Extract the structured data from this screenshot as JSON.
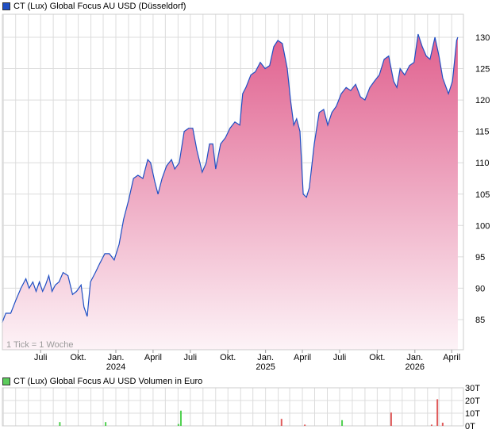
{
  "chart_data": [
    {
      "type": "area",
      "title": "CT (Lux) Global Focus AU USD (Düsseldorf)",
      "note": "1 Tick = 1 Woche",
      "colors": {
        "line": "#1f4fc4",
        "fill_top": "#e0608e",
        "fill_bottom": "#fdf3f7",
        "legend": "#1f4fc4"
      },
      "grid": true,
      "ylim": [
        80,
        132
      ],
      "y_ticks": [
        85,
        90,
        95,
        100,
        105,
        110,
        115,
        120,
        125,
        130
      ],
      "x_ticks": [
        {
          "date": "2023-07-01",
          "label": "Juli",
          "year": ""
        },
        {
          "date": "2023-10-01",
          "label": "Okt.",
          "year": ""
        },
        {
          "date": "2024-01-01",
          "label": "Jan.",
          "year": "2024"
        },
        {
          "date": "2024-04-01",
          "label": "April",
          "year": ""
        },
        {
          "date": "2024-07-01",
          "label": "Juli",
          "year": ""
        },
        {
          "date": "2024-10-01",
          "label": "Okt.",
          "year": ""
        },
        {
          "date": "2025-01-01",
          "label": "Jan.",
          "year": "2025"
        },
        {
          "date": "2025-04-01",
          "label": "April",
          "year": ""
        },
        {
          "date": "2025-07-01",
          "label": "Juli",
          "year": ""
        },
        {
          "date": "2025-10-01",
          "label": "Okt.",
          "year": ""
        },
        {
          "date": "2026-01-01",
          "label": "Jan.",
          "year": "2026"
        },
        {
          "date": "2026-04-01",
          "label": "April",
          "year": ""
        }
      ],
      "points": [
        [
          "2023-03-29",
          84.5
        ],
        [
          "2023-04-07",
          86
        ],
        [
          "2023-04-19",
          86
        ],
        [
          "2023-05-01",
          88
        ],
        [
          "2023-05-14",
          90
        ],
        [
          "2023-05-26",
          91.5
        ],
        [
          "2023-06-03",
          90
        ],
        [
          "2023-06-12",
          91
        ],
        [
          "2023-06-20",
          89.5
        ],
        [
          "2023-06-28",
          91
        ],
        [
          "2023-07-06",
          89.5
        ],
        [
          "2023-07-13",
          90.5
        ],
        [
          "2023-07-21",
          92
        ],
        [
          "2023-07-29",
          89.5
        ],
        [
          "2023-08-06",
          90.5
        ],
        [
          "2023-08-15",
          91
        ],
        [
          "2023-08-25",
          92.5
        ],
        [
          "2023-09-06",
          92
        ],
        [
          "2023-09-17",
          89
        ],
        [
          "2023-09-27",
          89.5
        ],
        [
          "2023-10-08",
          90.5
        ],
        [
          "2023-10-15",
          87
        ],
        [
          "2023-10-23",
          85.5
        ],
        [
          "2023-10-31",
          91
        ],
        [
          "2023-11-12",
          92.5
        ],
        [
          "2023-11-23",
          94
        ],
        [
          "2023-12-05",
          95.5
        ],
        [
          "2023-12-16",
          95.5
        ],
        [
          "2023-12-28",
          94.5
        ],
        [
          "2024-01-09",
          97
        ],
        [
          "2024-01-20",
          101
        ],
        [
          "2024-02-01",
          104
        ],
        [
          "2024-02-13",
          107.5
        ],
        [
          "2024-02-24",
          108
        ],
        [
          "2024-03-07",
          107.5
        ],
        [
          "2024-03-19",
          110.5
        ],
        [
          "2024-03-26",
          110
        ],
        [
          "2024-04-05",
          107
        ],
        [
          "2024-04-13",
          105
        ],
        [
          "2024-04-23",
          107.5
        ],
        [
          "2024-05-04",
          109.5
        ],
        [
          "2024-05-16",
          110.5
        ],
        [
          "2024-05-24",
          109
        ],
        [
          "2024-06-04",
          110
        ],
        [
          "2024-06-16",
          115
        ],
        [
          "2024-06-27",
          115.5
        ],
        [
          "2024-07-07",
          115.5
        ],
        [
          "2024-07-17",
          112
        ],
        [
          "2024-07-30",
          108.5
        ],
        [
          "2024-08-09",
          110
        ],
        [
          "2024-08-17",
          113
        ],
        [
          "2024-08-25",
          113
        ],
        [
          "2024-09-01",
          109
        ],
        [
          "2024-09-13",
          113
        ],
        [
          "2024-09-25",
          114
        ],
        [
          "2024-10-06",
          115.5
        ],
        [
          "2024-10-18",
          116.5
        ],
        [
          "2024-10-30",
          116
        ],
        [
          "2024-11-06",
          121
        ],
        [
          "2024-11-14",
          122
        ],
        [
          "2024-11-26",
          124
        ],
        [
          "2024-12-07",
          124.5
        ],
        [
          "2024-12-19",
          126
        ],
        [
          "2024-12-31",
          125
        ],
        [
          "2025-01-11",
          125.5
        ],
        [
          "2025-01-21",
          128.5
        ],
        [
          "2025-01-31",
          129.5
        ],
        [
          "2025-02-11",
          129
        ],
        [
          "2025-02-23",
          125
        ],
        [
          "2025-03-03",
          120
        ],
        [
          "2025-03-11",
          116
        ],
        [
          "2025-03-18",
          117
        ],
        [
          "2025-03-26",
          115
        ],
        [
          "2025-04-03",
          105
        ],
        [
          "2025-04-11",
          104.5
        ],
        [
          "2025-04-18",
          106
        ],
        [
          "2025-04-30",
          113
        ],
        [
          "2025-05-12",
          118
        ],
        [
          "2025-05-23",
          118.5
        ],
        [
          "2025-06-02",
          116
        ],
        [
          "2025-06-12",
          118
        ],
        [
          "2025-06-23",
          119
        ],
        [
          "2025-07-05",
          121
        ],
        [
          "2025-07-17",
          122
        ],
        [
          "2025-07-28",
          121.5
        ],
        [
          "2025-08-09",
          122.5
        ],
        [
          "2025-08-21",
          120.5
        ],
        [
          "2025-09-01",
          120
        ],
        [
          "2025-09-13",
          122
        ],
        [
          "2025-09-24",
          123
        ],
        [
          "2025-10-06",
          124
        ],
        [
          "2025-10-18",
          126.5
        ],
        [
          "2025-10-29",
          127
        ],
        [
          "2025-11-10",
          123
        ],
        [
          "2025-11-18",
          122
        ],
        [
          "2025-11-26",
          125
        ],
        [
          "2025-12-07",
          124
        ],
        [
          "2025-12-19",
          125.5
        ],
        [
          "2025-12-30",
          126
        ],
        [
          "2026-01-09",
          130.5
        ],
        [
          "2026-01-19",
          128.5
        ],
        [
          "2026-01-29",
          127
        ],
        [
          "2026-02-07",
          126.5
        ],
        [
          "2026-02-19",
          130
        ],
        [
          "2026-03-01",
          127
        ],
        [
          "2026-03-10",
          123.5
        ],
        [
          "2026-03-24",
          121
        ],
        [
          "2026-04-03",
          123
        ],
        [
          "2026-04-13",
          129.5
        ],
        [
          "2026-04-16",
          130
        ]
      ]
    },
    {
      "type": "bar",
      "title": "CT (Lux) Global Focus AU USD Volumen in Euro",
      "colors": {
        "up": "#4fd04f",
        "down": "#e05a5a",
        "legend": "#5ccc5c"
      },
      "grid": true,
      "ylim": [
        0,
        30
      ],
      "unit": "T",
      "y_ticks": [
        {
          "v": 0,
          "label": "0T"
        },
        {
          "v": 10,
          "label": "10T"
        },
        {
          "v": 20,
          "label": "20T"
        },
        {
          "v": 30,
          "label": "30T"
        }
      ],
      "bars": [
        {
          "date": "2023-08-17",
          "value": 3,
          "dir": "up"
        },
        {
          "date": "2023-12-07",
          "value": 3,
          "dir": "up"
        },
        {
          "date": "2024-06-02",
          "value": 1.5,
          "dir": "up"
        },
        {
          "date": "2024-06-08",
          "value": 12,
          "dir": "up"
        },
        {
          "date": "2025-02-09",
          "value": 5.5,
          "dir": "down"
        },
        {
          "date": "2025-04-07",
          "value": 1,
          "dir": "down"
        },
        {
          "date": "2025-07-07",
          "value": 4.5,
          "dir": "up"
        },
        {
          "date": "2025-11-04",
          "value": 10.5,
          "dir": "down"
        },
        {
          "date": "2026-02-11",
          "value": 1,
          "dir": "down"
        },
        {
          "date": "2026-02-25",
          "value": 21,
          "dir": "down"
        },
        {
          "date": "2026-03-10",
          "value": 2.5,
          "dir": "down"
        }
      ]
    }
  ]
}
